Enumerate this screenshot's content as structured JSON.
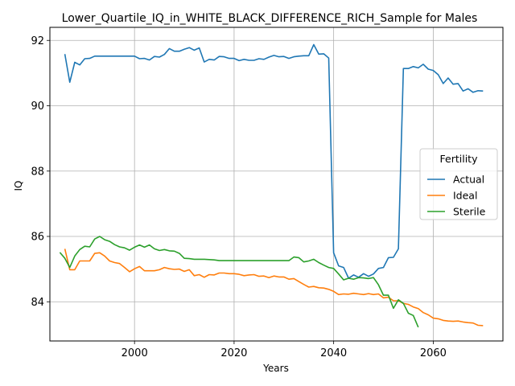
{
  "chart_data": {
    "type": "line",
    "title": "Lower_Quartile_IQ_in_WHITE_BLACK_DIFFERENCE_RICH_Sample for Males",
    "xlabel": "Years",
    "ylabel": "IQ",
    "xlim": [
      1983,
      2074
    ],
    "ylim": [
      82.8,
      92.4
    ],
    "xticks": [
      2000,
      2020,
      2040,
      2060
    ],
    "yticks": [
      84,
      86,
      88,
      90,
      92
    ],
    "grid": true,
    "legend": {
      "title": "Fertility",
      "placement": "center-right"
    },
    "series": [
      {
        "name": "Actual",
        "color": "#1f77b4",
        "x": [
          1986,
          1987,
          1988,
          1989,
          1990,
          1991,
          1992,
          1993,
          1994,
          1995,
          1996,
          1997,
          1998,
          1999,
          2000,
          2001,
          2002,
          2003,
          2004,
          2005,
          2006,
          2007,
          2008,
          2009,
          2010,
          2011,
          2012,
          2013,
          2014,
          2015,
          2016,
          2017,
          2018,
          2019,
          2020,
          2021,
          2022,
          2023,
          2024,
          2025,
          2026,
          2027,
          2028,
          2029,
          2030,
          2031,
          2032,
          2033,
          2034,
          2035,
          2036,
          2037,
          2038,
          2039,
          2040,
          2041,
          2042,
          2043,
          2044,
          2045,
          2046,
          2047,
          2048,
          2049,
          2050,
          2051,
          2052,
          2053,
          2054,
          2055,
          2056,
          2057,
          2058,
          2059,
          2060,
          2061,
          2062,
          2063,
          2064,
          2065,
          2066,
          2067,
          2068,
          2069,
          2070
        ],
        "values": [
          91.58,
          90.72,
          91.33,
          91.25,
          91.44,
          91.45,
          91.52,
          91.52,
          91.52,
          91.52,
          91.52,
          91.52,
          91.52,
          91.52,
          91.52,
          91.44,
          91.45,
          91.4,
          91.51,
          91.49,
          91.57,
          91.75,
          91.67,
          91.67,
          91.73,
          91.78,
          91.7,
          91.77,
          91.34,
          91.42,
          91.4,
          91.51,
          91.5,
          91.45,
          91.45,
          91.38,
          91.42,
          91.39,
          91.39,
          91.44,
          91.42,
          91.49,
          91.54,
          91.5,
          91.51,
          91.45,
          91.5,
          91.52,
          91.53,
          91.53,
          91.87,
          91.58,
          91.59,
          91.46,
          85.5,
          85.1,
          85.05,
          84.72,
          84.82,
          84.75,
          84.86,
          84.78,
          84.85,
          85.02,
          85.05,
          85.35,
          85.36,
          85.62,
          91.14,
          91.14,
          91.2,
          91.16,
          91.27,
          91.12,
          91.08,
          90.95,
          90.68,
          90.85,
          90.66,
          90.68,
          90.45,
          90.52,
          90.41,
          90.46,
          90.45
        ]
      },
      {
        "name": "Ideal",
        "color": "#ff7f0e",
        "x": [
          1986,
          1987,
          1988,
          1989,
          1990,
          1991,
          1992,
          1993,
          1994,
          1995,
          1996,
          1997,
          1998,
          1999,
          2000,
          2001,
          2002,
          2003,
          2004,
          2005,
          2006,
          2007,
          2008,
          2009,
          2010,
          2011,
          2012,
          2013,
          2014,
          2015,
          2016,
          2017,
          2018,
          2019,
          2020,
          2021,
          2022,
          2023,
          2024,
          2025,
          2026,
          2027,
          2028,
          2029,
          2030,
          2031,
          2032,
          2033,
          2034,
          2035,
          2036,
          2037,
          2038,
          2039,
          2040,
          2041,
          2042,
          2043,
          2044,
          2045,
          2046,
          2047,
          2048,
          2049,
          2050,
          2051,
          2052,
          2053,
          2054,
          2055,
          2056,
          2057,
          2058,
          2059,
          2060,
          2061,
          2062,
          2063,
          2064,
          2065,
          2066,
          2067,
          2068,
          2069,
          2070
        ],
        "values": [
          85.62,
          84.98,
          84.98,
          85.25,
          85.25,
          85.25,
          85.48,
          85.5,
          85.4,
          85.25,
          85.2,
          85.17,
          85.05,
          84.92,
          85.01,
          85.08,
          84.95,
          84.95,
          84.95,
          84.98,
          85.05,
          85.01,
          84.99,
          85.0,
          84.93,
          84.98,
          84.8,
          84.83,
          84.75,
          84.83,
          84.82,
          84.88,
          84.88,
          84.86,
          84.86,
          84.84,
          84.8,
          84.82,
          84.83,
          84.78,
          84.79,
          84.74,
          84.79,
          84.76,
          84.76,
          84.69,
          84.71,
          84.62,
          84.53,
          84.45,
          84.47,
          84.43,
          84.42,
          84.38,
          84.32,
          84.22,
          84.24,
          84.23,
          84.26,
          84.24,
          84.22,
          84.25,
          84.22,
          84.24,
          84.12,
          84.14,
          84.03,
          84.03,
          83.95,
          83.92,
          83.84,
          83.79,
          83.67,
          83.6,
          83.5,
          83.48,
          83.43,
          83.41,
          83.4,
          83.41,
          83.38,
          83.36,
          83.35,
          83.28,
          83.27
        ]
      },
      {
        "name": "Sterile",
        "color": "#2ca02c",
        "x": [
          1985,
          1986,
          1987,
          1988,
          1989,
          1990,
          1991,
          1992,
          1993,
          1994,
          1995,
          1996,
          1997,
          1998,
          1999,
          2000,
          2001,
          2002,
          2003,
          2004,
          2005,
          2006,
          2007,
          2008,
          2009,
          2010,
          2011,
          2012,
          2013,
          2014,
          2015,
          2016,
          2017,
          2018,
          2019,
          2020,
          2021,
          2022,
          2023,
          2024,
          2025,
          2026,
          2027,
          2028,
          2029,
          2030,
          2031,
          2032,
          2033,
          2034,
          2035,
          2036,
          2037,
          2038,
          2039,
          2040,
          2041,
          2042,
          2043,
          2044,
          2045,
          2046,
          2047,
          2048,
          2049,
          2050,
          2051,
          2052,
          2053,
          2054,
          2055,
          2056,
          2057
        ],
        "values": [
          85.51,
          85.33,
          85.05,
          85.4,
          85.6,
          85.7,
          85.68,
          85.92,
          86.0,
          85.9,
          85.85,
          85.75,
          85.68,
          85.65,
          85.58,
          85.67,
          85.74,
          85.67,
          85.74,
          85.62,
          85.57,
          85.6,
          85.56,
          85.55,
          85.48,
          85.33,
          85.32,
          85.3,
          85.3,
          85.3,
          85.29,
          85.28,
          85.26,
          85.26,
          85.26,
          85.26,
          85.26,
          85.26,
          85.26,
          85.26,
          85.26,
          85.26,
          85.26,
          85.26,
          85.26,
          85.26,
          85.26,
          85.37,
          85.35,
          85.22,
          85.25,
          85.3,
          85.2,
          85.12,
          85.05,
          85.02,
          84.85,
          84.67,
          84.72,
          84.69,
          84.74,
          84.73,
          84.71,
          84.74,
          84.52,
          84.2,
          84.2,
          83.8,
          84.06,
          83.95,
          83.65,
          83.58,
          83.22
        ]
      }
    ]
  }
}
